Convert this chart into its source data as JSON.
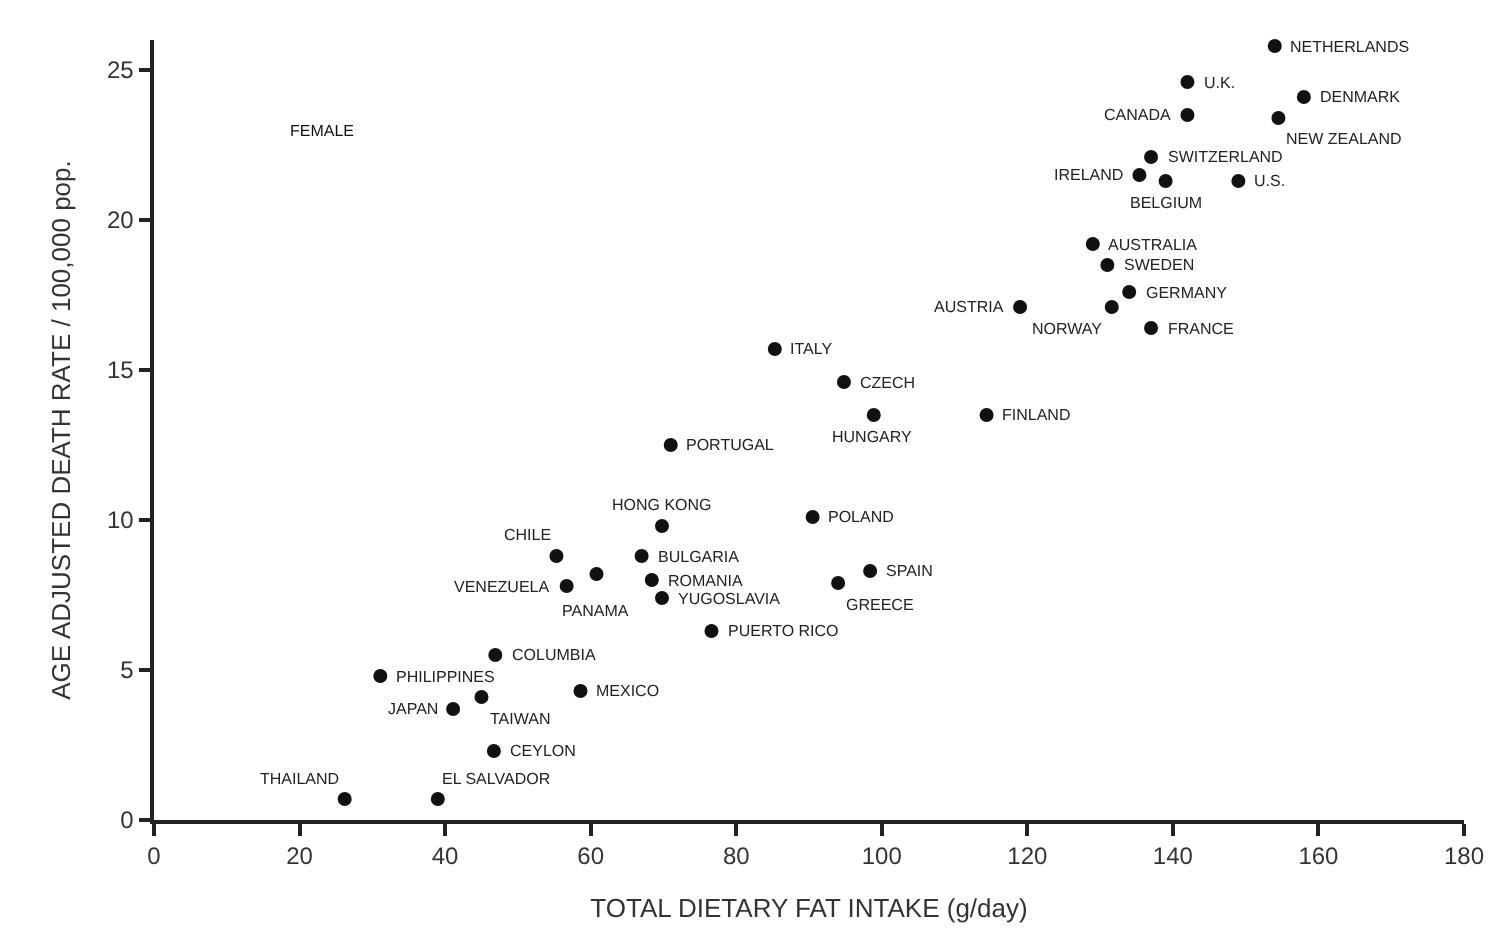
{
  "chart_data": {
    "type": "scatter",
    "xlabel": "TOTAL DIETARY FAT INTAKE (g/day)",
    "ylabel": "AGE ADJUSTED DEATH RATE / 100,000 pop.",
    "xlim": [
      0,
      180
    ],
    "ylim": [
      0,
      26
    ],
    "xticks": [
      0,
      20,
      40,
      60,
      80,
      100,
      120,
      140,
      160,
      180
    ],
    "yticks": [
      0,
      5,
      10,
      15,
      20,
      25
    ],
    "grid": false,
    "marker": "circle",
    "series": [
      {
        "color": "#111111",
        "x": [
          154,
          142,
          142,
          158,
          154.5,
          137,
          135.4,
          139,
          149,
          129,
          131,
          134,
          131.6,
          119,
          137,
          85.3,
          94.8,
          98.9,
          114.4,
          71,
          69.8,
          55.3,
          56.7,
          60.8,
          67,
          68.4,
          69.8,
          76.6,
          90.5,
          98.4,
          94,
          46.9,
          31.1,
          58.6,
          45,
          41.1,
          46.7,
          26.2,
          39
        ],
        "values": [
          25.8,
          24.6,
          23.5,
          24.1,
          23.4,
          22.1,
          21.5,
          21.3,
          21.3,
          19.2,
          18.5,
          17.6,
          17.1,
          17.1,
          16.4,
          15.7,
          14.6,
          13.5,
          13.5,
          12.5,
          9.8,
          8.8,
          7.8,
          8.2,
          8.8,
          8.0,
          7.4,
          6.3,
          10.1,
          8.3,
          7.9,
          5.5,
          4.8,
          4.3,
          4.1,
          3.7,
          2.3,
          0.7,
          0.7
        ]
      }
    ],
    "annotations": [
      "FEMALE",
      {
        "text": "NETHERLANDS",
        "x": 154,
        "y": 25.8
      },
      {
        "text": "U.K.",
        "x": 142,
        "y": 24.6
      },
      {
        "text": "CANADA",
        "x": 142,
        "y": 23.5
      },
      {
        "text": "DENMARK",
        "x": 158,
        "y": 24.1
      },
      {
        "text": "NEW ZEALAND",
        "x": 154.5,
        "y": 23.4
      },
      {
        "text": "SWITZERLAND",
        "x": 137,
        "y": 22.1
      },
      {
        "text": "IRELAND",
        "x": 135.4,
        "y": 21.5
      },
      {
        "text": "BELGIUM",
        "x": 139,
        "y": 21.3
      },
      {
        "text": "U.S.",
        "x": 149,
        "y": 21.3
      },
      {
        "text": "AUSTRALIA",
        "x": 129,
        "y": 19.2
      },
      {
        "text": "SWEDEN",
        "x": 131,
        "y": 18.5
      },
      {
        "text": "GERMANY",
        "x": 134,
        "y": 17.6
      },
      {
        "text": "NORWAY",
        "x": 131.6,
        "y": 17.1
      },
      {
        "text": "AUSTRIA",
        "x": 119,
        "y": 17.1
      },
      {
        "text": "FRANCE",
        "x": 137,
        "y": 16.4
      },
      {
        "text": "ITALY",
        "x": 85.3,
        "y": 15.7
      },
      {
        "text": "CZECH",
        "x": 94.8,
        "y": 14.6
      },
      {
        "text": "HUNGARY",
        "x": 98.9,
        "y": 13.5
      },
      {
        "text": "FINLAND",
        "x": 114.4,
        "y": 13.5
      },
      {
        "text": "PORTUGAL",
        "x": 71,
        "y": 12.5
      },
      {
        "text": "HONG KONG",
        "x": 69.8,
        "y": 9.8
      },
      {
        "text": "CHILE",
        "x": 55.3,
        "y": 8.8
      },
      {
        "text": "VENEZUELA",
        "x": 56.7,
        "y": 7.8
      },
      {
        "text": "PANAMA",
        "x": 60.8,
        "y": 8.2
      },
      {
        "text": "BULGARIA",
        "x": 67,
        "y": 8.8
      },
      {
        "text": "ROMANIA",
        "x": 68.4,
        "y": 8.0
      },
      {
        "text": "YUGOSLAVIA",
        "x": 69.8,
        "y": 7.4
      },
      {
        "text": "PUERTO RICO",
        "x": 76.6,
        "y": 6.3
      },
      {
        "text": "POLAND",
        "x": 90.5,
        "y": 10.1
      },
      {
        "text": "SPAIN",
        "x": 98.4,
        "y": 8.3
      },
      {
        "text": "GREECE",
        "x": 94,
        "y": 7.9
      },
      {
        "text": "COLUMBIA",
        "x": 46.9,
        "y": 5.5
      },
      {
        "text": "PHILIPPINES",
        "x": 31.1,
        "y": 4.8
      },
      {
        "text": "MEXICO",
        "x": 58.6,
        "y": 4.3
      },
      {
        "text": "TAIWAN",
        "x": 45,
        "y": 4.1
      },
      {
        "text": "JAPAN",
        "x": 41.1,
        "y": 3.7
      },
      {
        "text": "CEYLON",
        "x": 46.7,
        "y": 2.3
      },
      {
        "text": "THAILAND",
        "x": 26.2,
        "y": 0.7
      },
      {
        "text": "EL SALVADOR",
        "x": 39,
        "y": 0.7
      }
    ]
  }
}
